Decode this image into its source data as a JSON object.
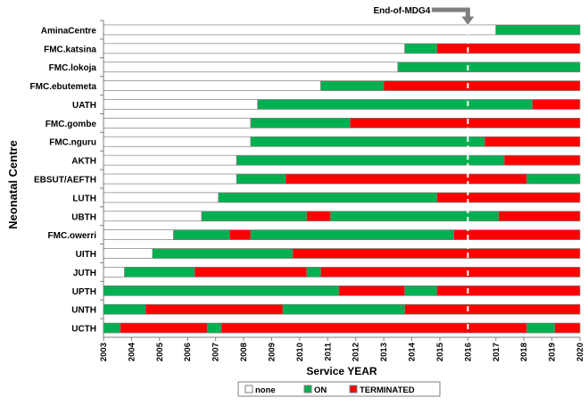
{
  "chart_data": {
    "type": "bar",
    "orientation": "horizontal",
    "stacked": true,
    "title": "",
    "xlabel": "Service YEAR",
    "ylabel": "Neonatal Centre",
    "xlim": [
      2003,
      2020
    ],
    "x_ticks": [
      "2003",
      "2004",
      "2005",
      "2006",
      "2007",
      "2008",
      "2009",
      "2010",
      "2011",
      "2012",
      "2013",
      "2014",
      "2015",
      "2016",
      "2017",
      "2018",
      "2019",
      "2020"
    ],
    "grid": false,
    "legend_position": "bottom",
    "legend": [
      {
        "key": "none",
        "label": "none",
        "color": "#ffffff"
      },
      {
        "key": "on",
        "label": "ON",
        "color": "#00b050"
      },
      {
        "key": "terminated",
        "label": "TERMINATED",
        "color": "#ff0000"
      }
    ],
    "reference_line": {
      "x": 2016,
      "label": "End-of-MDG4"
    },
    "categories": [
      "AminaCentre",
      "FMC.katsina",
      "FMC.lokoja",
      "FMC.ebutemeta",
      "UATH",
      "FMC.gombe",
      "FMC.nguru",
      "AKTH",
      "EBSUT/AEFTH",
      "LUTH",
      "UBTH",
      "FMC.owerri",
      "UITH",
      "JUTH",
      "UPTH",
      "UNTH",
      "UCTH"
    ],
    "rows": [
      {
        "centre": "AminaCentre",
        "segments": [
          {
            "status": "none",
            "from": 2003,
            "to": 2017
          },
          {
            "status": "on",
            "from": 2017,
            "to": 2020
          }
        ]
      },
      {
        "centre": "FMC.katsina",
        "segments": [
          {
            "status": "none",
            "from": 2003,
            "to": 2013.75
          },
          {
            "status": "on",
            "from": 2013.75,
            "to": 2014.9
          },
          {
            "status": "terminated",
            "from": 2014.9,
            "to": 2020
          }
        ]
      },
      {
        "centre": "FMC.lokoja",
        "segments": [
          {
            "status": "none",
            "from": 2003,
            "to": 2013.5
          },
          {
            "status": "on",
            "from": 2013.5,
            "to": 2020
          }
        ]
      },
      {
        "centre": "FMC.ebutemeta",
        "segments": [
          {
            "status": "none",
            "from": 2003,
            "to": 2010.75
          },
          {
            "status": "on",
            "from": 2010.75,
            "to": 2013
          },
          {
            "status": "terminated",
            "from": 2013,
            "to": 2020
          }
        ]
      },
      {
        "centre": "UATH",
        "segments": [
          {
            "status": "none",
            "from": 2003,
            "to": 2008.5
          },
          {
            "status": "on",
            "from": 2008.5,
            "to": 2018.3
          },
          {
            "status": "terminated",
            "from": 2018.3,
            "to": 2020
          }
        ]
      },
      {
        "centre": "FMC.gombe",
        "segments": [
          {
            "status": "none",
            "from": 2003,
            "to": 2008.25
          },
          {
            "status": "on",
            "from": 2008.25,
            "to": 2011.8
          },
          {
            "status": "terminated",
            "from": 2011.8,
            "to": 2020
          }
        ]
      },
      {
        "centre": "FMC.nguru",
        "segments": [
          {
            "status": "none",
            "from": 2003,
            "to": 2008.25
          },
          {
            "status": "on",
            "from": 2008.25,
            "to": 2016.6
          },
          {
            "status": "terminated",
            "from": 2016.6,
            "to": 2020
          }
        ]
      },
      {
        "centre": "AKTH",
        "segments": [
          {
            "status": "none",
            "from": 2003,
            "to": 2007.75
          },
          {
            "status": "on",
            "from": 2007.75,
            "to": 2017.3
          },
          {
            "status": "terminated",
            "from": 2017.3,
            "to": 2020
          }
        ]
      },
      {
        "centre": "EBSUT/AEFTH",
        "segments": [
          {
            "status": "none",
            "from": 2003,
            "to": 2007.75
          },
          {
            "status": "on",
            "from": 2007.75,
            "to": 2009.5
          },
          {
            "status": "terminated",
            "from": 2009.5,
            "to": 2018.1
          },
          {
            "status": "on",
            "from": 2018.1,
            "to": 2020
          }
        ]
      },
      {
        "centre": "LUTH",
        "segments": [
          {
            "status": "none",
            "from": 2003,
            "to": 2007.1
          },
          {
            "status": "on",
            "from": 2007.1,
            "to": 2014.9
          },
          {
            "status": "terminated",
            "from": 2014.9,
            "to": 2020
          }
        ]
      },
      {
        "centre": "UBTH",
        "segments": [
          {
            "status": "none",
            "from": 2003,
            "to": 2006.5
          },
          {
            "status": "on",
            "from": 2006.5,
            "to": 2010.25
          },
          {
            "status": "terminated",
            "from": 2010.25,
            "to": 2011.1
          },
          {
            "status": "on",
            "from": 2011.1,
            "to": 2017.1
          },
          {
            "status": "terminated",
            "from": 2017.1,
            "to": 2020
          }
        ]
      },
      {
        "centre": "FMC.owerri",
        "segments": [
          {
            "status": "none",
            "from": 2003,
            "to": 2005.5
          },
          {
            "status": "on",
            "from": 2005.5,
            "to": 2007.5
          },
          {
            "status": "terminated",
            "from": 2007.5,
            "to": 2008.25
          },
          {
            "status": "on",
            "from": 2008.25,
            "to": 2015.5
          },
          {
            "status": "terminated",
            "from": 2015.5,
            "to": 2020
          }
        ]
      },
      {
        "centre": "UITH",
        "segments": [
          {
            "status": "none",
            "from": 2003,
            "to": 2004.75
          },
          {
            "status": "on",
            "from": 2004.75,
            "to": 2009.75
          },
          {
            "status": "terminated",
            "from": 2009.75,
            "to": 2020
          }
        ]
      },
      {
        "centre": "JUTH",
        "segments": [
          {
            "status": "none",
            "from": 2003,
            "to": 2003.75
          },
          {
            "status": "on",
            "from": 2003.75,
            "to": 2006.25
          },
          {
            "status": "terminated",
            "from": 2006.25,
            "to": 2010.25
          },
          {
            "status": "on",
            "from": 2010.25,
            "to": 2010.75
          },
          {
            "status": "terminated",
            "from": 2010.75,
            "to": 2020
          }
        ]
      },
      {
        "centre": "UPTH",
        "segments": [
          {
            "status": "on",
            "from": 2003,
            "to": 2011.4
          },
          {
            "status": "terminated",
            "from": 2011.4,
            "to": 2013.75
          },
          {
            "status": "on",
            "from": 2013.75,
            "to": 2014.9
          },
          {
            "status": "terminated",
            "from": 2014.9,
            "to": 2020
          }
        ]
      },
      {
        "centre": "UNTH",
        "segments": [
          {
            "status": "on",
            "from": 2003,
            "to": 2004.5
          },
          {
            "status": "terminated",
            "from": 2004.5,
            "to": 2009.4
          },
          {
            "status": "on",
            "from": 2009.4,
            "to": 2013.75
          },
          {
            "status": "terminated",
            "from": 2013.75,
            "to": 2020
          }
        ]
      },
      {
        "centre": "UCTH",
        "segments": [
          {
            "status": "on",
            "from": 2003,
            "to": 2003.6
          },
          {
            "status": "terminated",
            "from": 2003.6,
            "to": 2006.7
          },
          {
            "status": "on",
            "from": 2006.7,
            "to": 2007.2
          },
          {
            "status": "terminated",
            "from": 2007.2,
            "to": 2018.1
          },
          {
            "status": "on",
            "from": 2018.1,
            "to": 2019.1
          },
          {
            "status": "terminated",
            "from": 2019.1,
            "to": 2020
          }
        ]
      }
    ]
  }
}
